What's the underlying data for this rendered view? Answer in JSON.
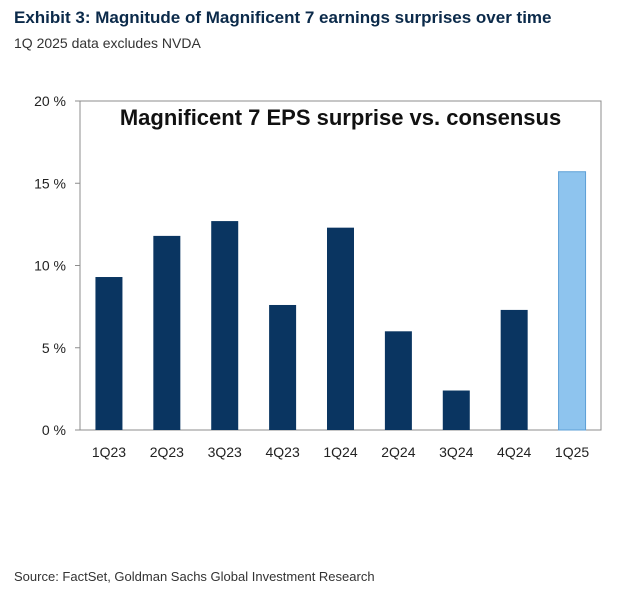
{
  "exhibit": {
    "title": "Exhibit 3: Magnitude of Magnificent 7 earnings surprises over time",
    "subtitle": "1Q 2025 data excludes NVDA",
    "source": "Source: FactSet, Goldman Sachs Global Investment Research"
  },
  "colors": {
    "bar_dark": "#0a3561",
    "bar_light": "#8ec4ee",
    "frame": "#8c8c8c"
  },
  "chart_data": {
    "type": "bar",
    "title": "Magnificent 7 EPS surprise vs. consensus",
    "categories": [
      "1Q23",
      "2Q23",
      "3Q23",
      "4Q23",
      "1Q24",
      "2Q24",
      "3Q24",
      "4Q24",
      "1Q25"
    ],
    "values": [
      9.3,
      11.8,
      12.7,
      7.6,
      12.3,
      6.0,
      2.4,
      7.3,
      15.7
    ],
    "highlight_index": 8,
    "ylim": [
      0,
      20
    ],
    "yticks": [
      0,
      5,
      10,
      15,
      20
    ],
    "ytick_labels": [
      "0 %",
      "5 %",
      "10 %",
      "15 %",
      "20 %"
    ],
    "xlabel": "",
    "ylabel": "",
    "grid": false,
    "legend": "none"
  }
}
